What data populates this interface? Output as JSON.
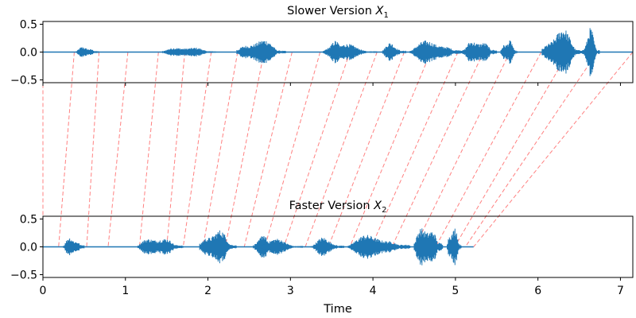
{
  "chart_data": {
    "type": "line",
    "xlabel": "Time",
    "xlim": [
      0,
      7.15
    ],
    "xticks": [
      "0",
      "1",
      "2",
      "3",
      "4",
      "5",
      "6",
      "7"
    ],
    "waveform_color": "#1f77b4",
    "alignment_color": "#ff6b6b",
    "panels": [
      {
        "id": "slow",
        "title_main": "Slower Version ",
        "title_sym": "X",
        "title_sub": "1",
        "ylim": [
          -0.55,
          0.55
        ],
        "yticks": [
          "0.5",
          "0.0",
          "−0.5"
        ],
        "duration": 7.15,
        "segments": [
          {
            "t0": 0.4,
            "t1": 0.68,
            "amp": 0.12
          },
          {
            "t0": 1.45,
            "t1": 2.1,
            "amp": 0.13
          },
          {
            "t0": 2.35,
            "t1": 2.95,
            "amp": 0.28
          },
          {
            "t0": 3.4,
            "t1": 3.7,
            "amp": 0.22
          },
          {
            "t0": 3.42,
            "t1": 4.05,
            "amp": 0.15
          },
          {
            "t0": 4.1,
            "t1": 4.4,
            "amp": 0.18
          },
          {
            "t0": 4.45,
            "t1": 5.1,
            "amp": 0.25
          },
          {
            "t0": 5.1,
            "t1": 5.5,
            "amp": 0.3
          },
          {
            "t0": 5.55,
            "t1": 5.75,
            "amp": 0.28
          },
          {
            "t0": 6.05,
            "t1": 6.55,
            "amp": 0.48
          },
          {
            "t0": 6.55,
            "t1": 6.75,
            "amp": 0.45
          }
        ]
      },
      {
        "id": "fast",
        "title_main": "Faster Version ",
        "title_sym": "X",
        "title_sub": "2",
        "ylim": [
          -0.55,
          0.55
        ],
        "yticks": [
          "0.5",
          "0.0",
          "−0.5"
        ],
        "duration": 5.22,
        "segments": [
          {
            "t0": 0.25,
            "t1": 0.5,
            "amp": 0.22
          },
          {
            "t0": 1.15,
            "t1": 1.7,
            "amp": 0.24
          },
          {
            "t0": 1.9,
            "t1": 2.35,
            "amp": 0.38
          },
          {
            "t0": 2.55,
            "t1": 2.8,
            "amp": 0.25
          },
          {
            "t0": 2.6,
            "t1": 3.15,
            "amp": 0.15
          },
          {
            "t0": 3.25,
            "t1": 3.65,
            "amp": 0.18
          },
          {
            "t0": 3.7,
            "t1": 4.45,
            "amp": 0.26
          },
          {
            "t0": 4.5,
            "t1": 4.85,
            "amp": 0.52
          },
          {
            "t0": 4.9,
            "t1": 5.07,
            "amp": 0.48
          }
        ]
      }
    ],
    "alignment": [
      {
        "slow": 0.0,
        "fast": 0.0
      },
      {
        "slow": 0.38,
        "fast": 0.19
      },
      {
        "slow": 0.68,
        "fast": 0.53
      },
      {
        "slow": 1.03,
        "fast": 0.79
      },
      {
        "slow": 1.4,
        "fast": 1.17
      },
      {
        "slow": 1.72,
        "fast": 1.5
      },
      {
        "slow": 2.04,
        "fast": 1.7
      },
      {
        "slow": 2.36,
        "fast": 1.94
      },
      {
        "slow": 2.68,
        "fast": 2.21
      },
      {
        "slow": 3.02,
        "fast": 2.44
      },
      {
        "slow": 3.36,
        "fast": 2.69
      },
      {
        "slow": 3.72,
        "fast": 2.92
      },
      {
        "slow": 4.05,
        "fast": 3.18
      },
      {
        "slow": 4.38,
        "fast": 3.46
      },
      {
        "slow": 4.7,
        "fast": 3.72
      },
      {
        "slow": 5.03,
        "fast": 3.98
      },
      {
        "slow": 5.34,
        "fast": 4.23
      },
      {
        "slow": 5.66,
        "fast": 4.51
      },
      {
        "slow": 6.04,
        "fast": 4.76
      },
      {
        "slow": 6.37,
        "fast": 4.99
      },
      {
        "slow": 6.72,
        "fast": 5.12
      },
      {
        "slow": 7.15,
        "fast": 5.22
      }
    ]
  }
}
